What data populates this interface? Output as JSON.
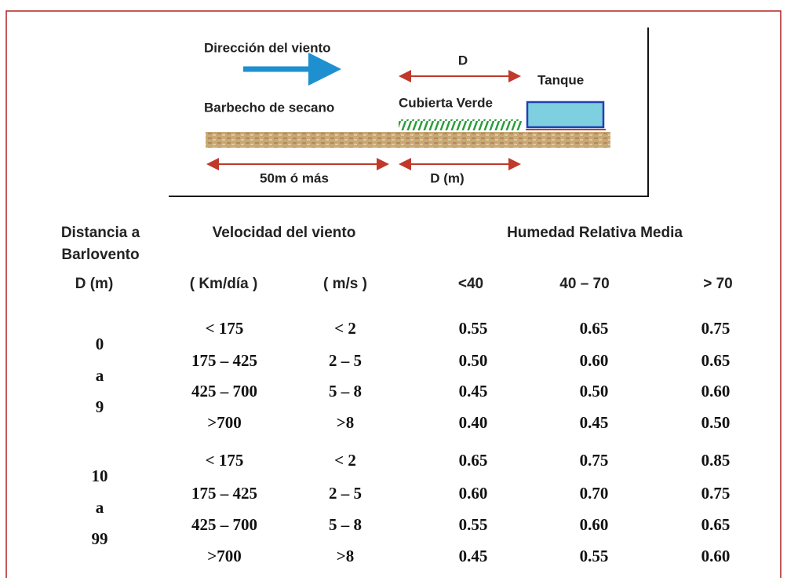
{
  "diagram": {
    "wind_label": "Dirección del viento",
    "d_label": "D",
    "tank_label": "Tanque",
    "fallow_label": "Barbecho de secano",
    "green_label": "Cubierta Verde",
    "distance_label": "50m ó más",
    "d_m_label": "D (m)"
  },
  "table": {
    "header": {
      "distance": [
        "Distancia a",
        "Barlovento"
      ],
      "velocity": "Velocidad del viento",
      "humidity": "Humedad Relativa Media"
    },
    "subheader": [
      "D (m)",
      "( Km/día )",
      "( m/s )",
      "<40",
      "40 – 70",
      "> 70"
    ],
    "groups": [
      {
        "label": [
          "0",
          "a",
          "9"
        ],
        "rows": [
          [
            "< 175",
            "< 2",
            "0.55",
            "0.65",
            "0.75"
          ],
          [
            "175 – 425",
            "2 – 5",
            "0.50",
            "0.60",
            "0.65"
          ],
          [
            "425 – 700",
            "5 – 8",
            "0.45",
            "0.50",
            "0.60"
          ],
          [
            ">700",
            ">8",
            "0.40",
            "0.45",
            "0.50"
          ]
        ]
      },
      {
        "label": [
          "10",
          "a",
          "99"
        ],
        "rows": [
          [
            "< 175",
            "< 2",
            "0.65",
            "0.75",
            "0.85"
          ],
          [
            "175 – 425",
            "2 – 5",
            "0.60",
            "0.70",
            "0.75"
          ],
          [
            "425 – 700",
            "5 – 8",
            "0.55",
            "0.60",
            "0.65"
          ],
          [
            ">700",
            ">8",
            "0.45",
            "0.55",
            "0.60"
          ]
        ]
      }
    ]
  }
}
